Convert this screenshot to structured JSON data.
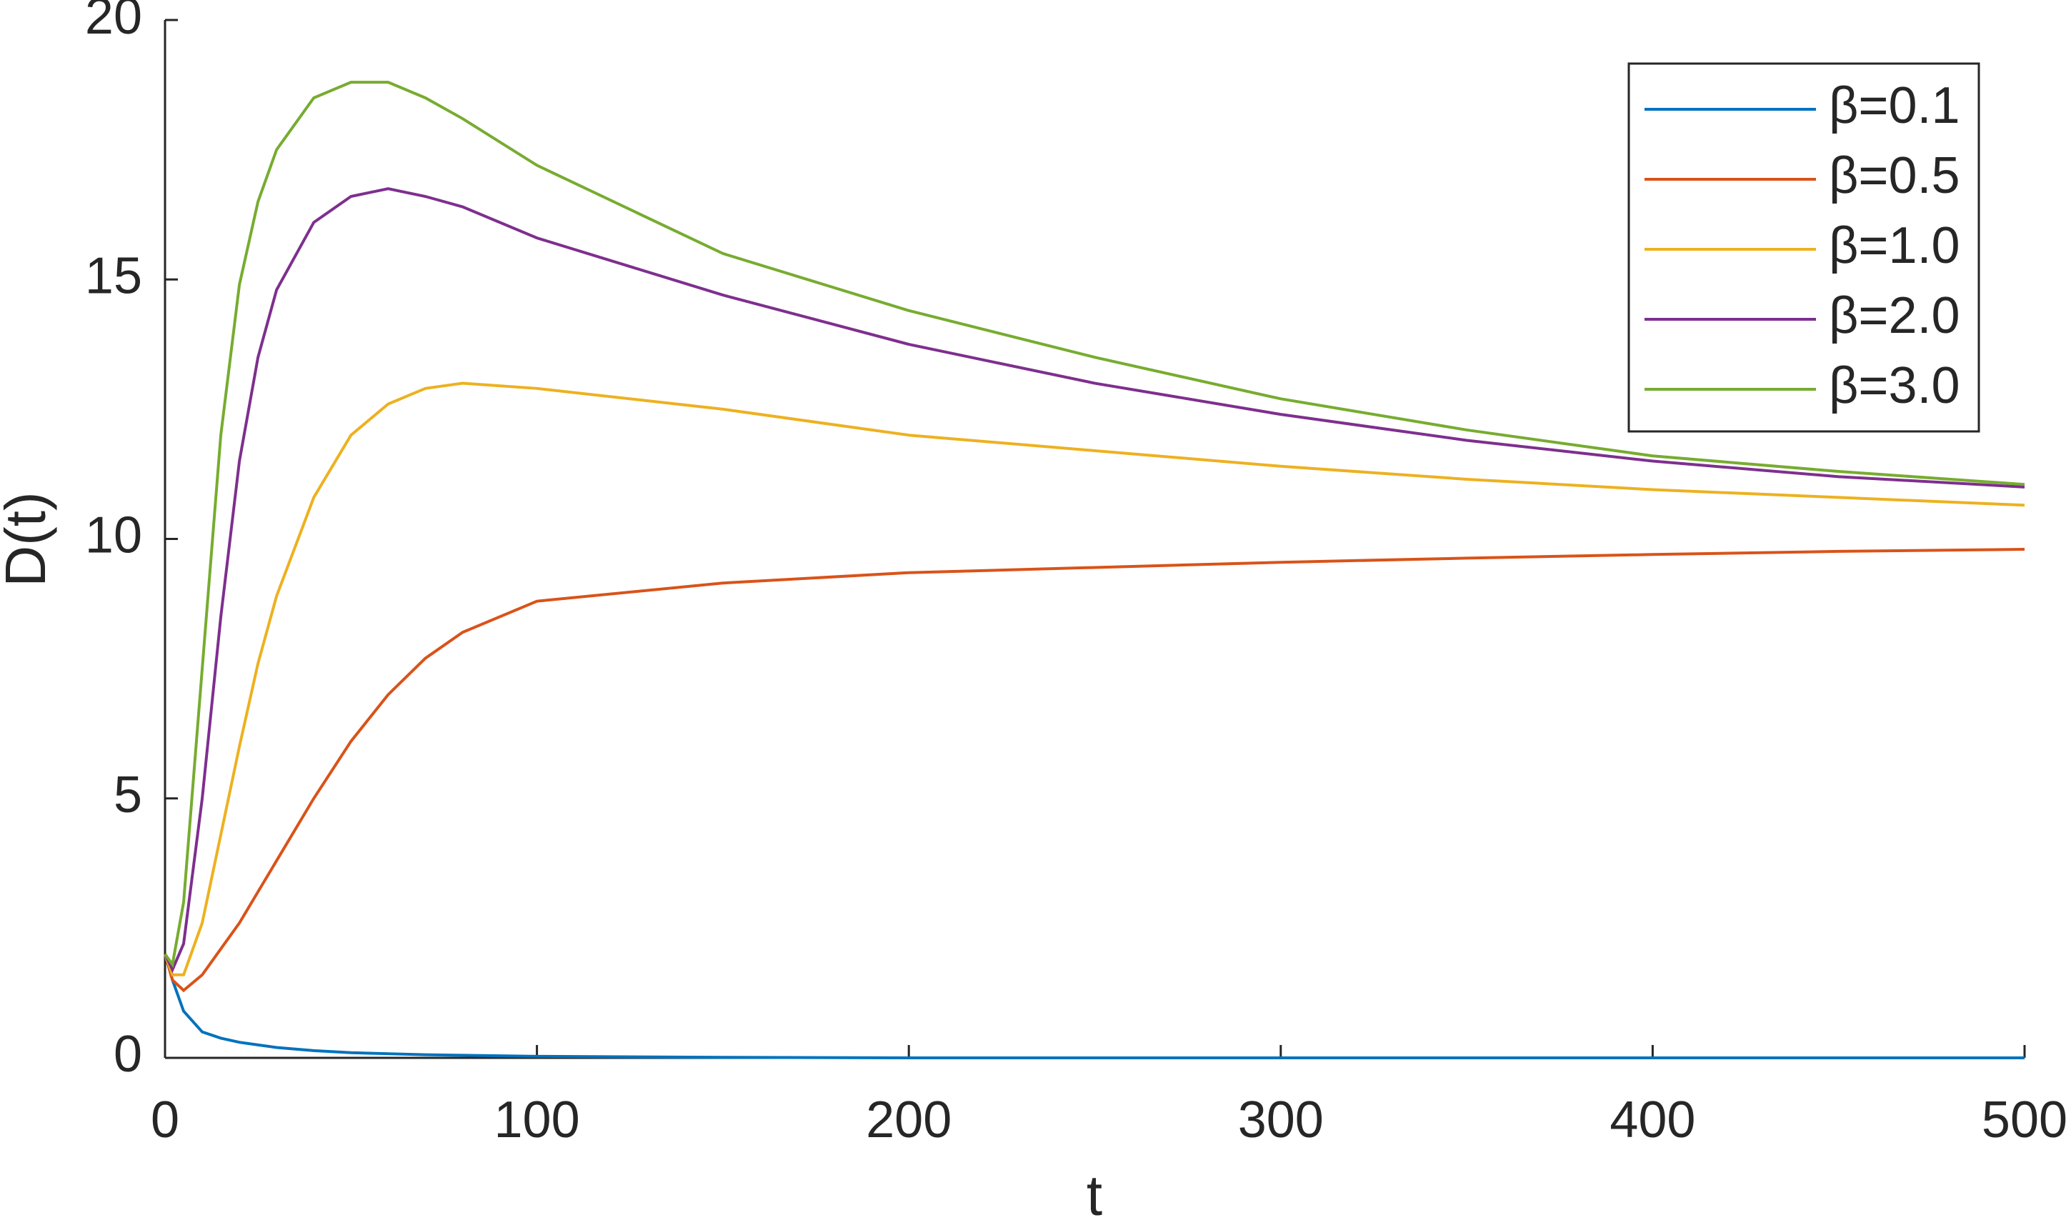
{
  "chart_data": {
    "type": "line",
    "xlabel": "t",
    "ylabel": "D(t)",
    "x": [
      0,
      2,
      5,
      10,
      15,
      20,
      25,
      30,
      40,
      50,
      60,
      70,
      80,
      100,
      150,
      200,
      250,
      300,
      350,
      400,
      450,
      500
    ],
    "series": [
      {
        "name": "β=0.1",
        "color": "#0072bd",
        "values": [
          2,
          1.5,
          0.9,
          0.5,
          0.38,
          0.3,
          0.25,
          0.2,
          0.14,
          0.1,
          0.08,
          0.06,
          0.05,
          0.03,
          0.01,
          0,
          0,
          0,
          0,
          0,
          0,
          0
        ]
      },
      {
        "name": "β=0.5",
        "color": "#d95319",
        "values": [
          2,
          1.5,
          1.3,
          1.6,
          2.1,
          2.6,
          3.2,
          3.8,
          5.0,
          6.1,
          7.0,
          7.7,
          8.2,
          8.8,
          9.15,
          9.35,
          9.45,
          9.55,
          9.63,
          9.7,
          9.76,
          9.8
        ]
      },
      {
        "name": "β=1.0",
        "color": "#edb120",
        "values": [
          2,
          1.6,
          1.6,
          2.6,
          4.3,
          6.0,
          7.6,
          8.9,
          10.8,
          12.0,
          12.6,
          12.9,
          13.0,
          12.9,
          12.5,
          12.0,
          11.7,
          11.4,
          11.15,
          10.95,
          10.8,
          10.65
        ]
      },
      {
        "name": "β=2.0",
        "color": "#7e2f8e",
        "values": [
          2,
          1.7,
          2.2,
          5.0,
          8.5,
          11.5,
          13.5,
          14.8,
          16.1,
          16.6,
          16.75,
          16.6,
          16.4,
          15.8,
          14.7,
          13.75,
          13.0,
          12.4,
          11.9,
          11.5,
          11.2,
          11.0
        ]
      },
      {
        "name": "β=3.0",
        "color": "#77ac30",
        "values": [
          2,
          1.8,
          3.0,
          7.5,
          12.0,
          14.9,
          16.5,
          17.5,
          18.5,
          18.8,
          18.8,
          18.5,
          18.1,
          17.2,
          15.5,
          14.4,
          13.5,
          12.7,
          12.1,
          11.6,
          11.3,
          11.05
        ]
      }
    ],
    "xlim": [
      0,
      500
    ],
    "xticks": [
      0,
      100,
      200,
      300,
      400,
      500
    ],
    "ylim": [
      0,
      20
    ],
    "yticks": [
      0,
      5,
      10,
      15,
      20
    ],
    "grid": false,
    "legend": "upper right"
  }
}
